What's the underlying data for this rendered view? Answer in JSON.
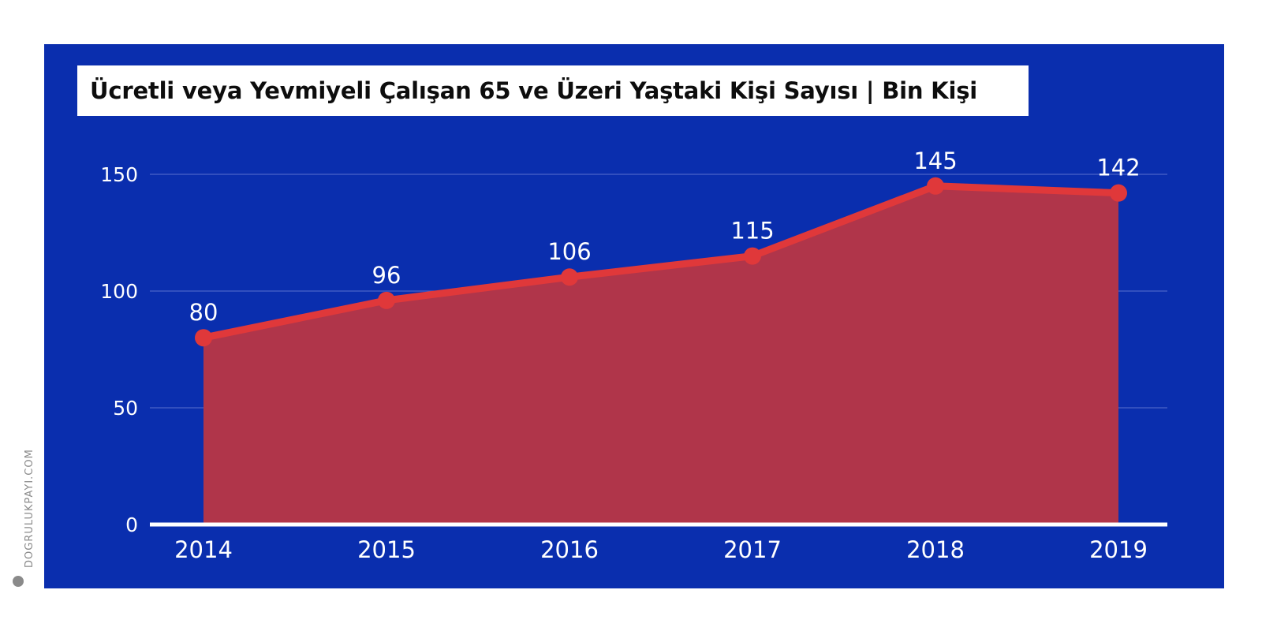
{
  "chart_data": {
    "type": "area",
    "title": "Ücretli veya Yevmiyeli Çalışan 65 ve Üzeri Yaştaki Kişi Sayısı | Bin Kişi",
    "categories": [
      "2014",
      "2015",
      "2016",
      "2017",
      "2018",
      "2019"
    ],
    "values": [
      80,
      96,
      106,
      115,
      145,
      142
    ],
    "data_labels": [
      "80",
      "96",
      "106",
      "115",
      "145",
      "142"
    ],
    "ylim": [
      0,
      150
    ],
    "yticks": [
      0,
      50,
      100,
      150
    ],
    "grid": true,
    "colors": {
      "background": "#0a2eae",
      "line": "#e0383a",
      "fill": "#b0354a",
      "grid": "#4a63c8",
      "text": "#ffffff"
    }
  },
  "watermark": {
    "text": "DOGRULUKPAYI.COM",
    "icon": "check-circle-icon"
  }
}
